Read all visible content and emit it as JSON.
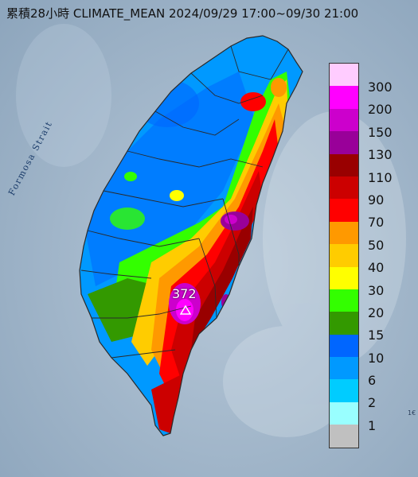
{
  "title": "累積28小時 CLIMATE_MEAN 2024/09/29 17:00~09/30 21:00",
  "sea_label": "Formosa Strait",
  "peak": {
    "value": "372",
    "marker": "triangle-icon"
  },
  "corner_text": "1€",
  "legend": {
    "unit_levels": [
      {
        "label": "300",
        "color": "#ffccff"
      },
      {
        "label": "200",
        "color": "#ff00ff"
      },
      {
        "label": "150",
        "color": "#cc00cc"
      },
      {
        "label": "130",
        "color": "#990099"
      },
      {
        "label": "110",
        "color": "#990000"
      },
      {
        "label": "90",
        "color": "#cc0000"
      },
      {
        "label": "70",
        "color": "#ff0000"
      },
      {
        "label": "50",
        "color": "#ff9900"
      },
      {
        "label": "40",
        "color": "#ffcc00"
      },
      {
        "label": "30",
        "color": "#ffff00"
      },
      {
        "label": "20",
        "color": "#33ff00"
      },
      {
        "label": "15",
        "color": "#339900"
      },
      {
        "label": "10",
        "color": "#0066ff"
      },
      {
        "label": "6",
        "color": "#0099ff"
      },
      {
        "label": "2",
        "color": "#00ccff"
      },
      {
        "label": "1",
        "color": "#99ffff"
      },
      {
        "label": "",
        "color": "#c0c0c0"
      }
    ]
  },
  "colors": {
    "sea": "#9fb4c8",
    "land_boundary": "#2a2a2a"
  }
}
